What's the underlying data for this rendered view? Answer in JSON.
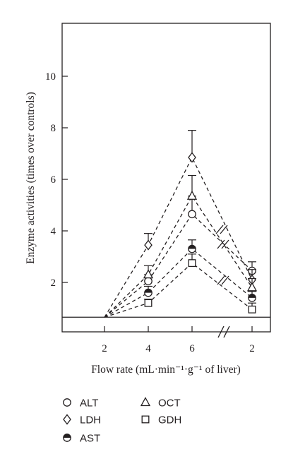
{
  "chart_data": {
    "type": "line",
    "xlabel": "Flow rate (mL·min⁻¹·g⁻¹ of liver)",
    "ylabel": "Enzyme activities (times over controls)",
    "x_categories": [
      "2",
      "4",
      "6",
      "2"
    ],
    "x_axis_break": "between 6 and 2 (//)",
    "yticks": [
      2,
      4,
      6,
      8,
      10
    ],
    "ylim": [
      0.4,
      12
    ],
    "baseline_y": 0.65,
    "grid": false,
    "legend_position": "bottom-left (below plot)",
    "series": [
      {
        "name": "ALT",
        "marker": "open-circle",
        "values": [
          0.65,
          2.05,
          4.65,
          2.45
        ],
        "error": [
          null,
          0.25,
          0.7,
          0.35
        ]
      },
      {
        "name": "LDH",
        "marker": "open-diamond",
        "values": [
          0.65,
          3.45,
          6.85,
          2.1
        ],
        "error": [
          null,
          0.45,
          1.05,
          0.4
        ]
      },
      {
        "name": "AST",
        "marker": "half-filled-circle",
        "values": [
          0.65,
          1.6,
          3.3,
          1.4
        ],
        "error": [
          null,
          0.25,
          0.35,
          0.25
        ]
      },
      {
        "name": "OCT",
        "marker": "open-triangle",
        "values": [
          0.65,
          2.3,
          5.35,
          1.8
        ],
        "error": [
          null,
          0.35,
          0.8,
          0.35
        ]
      },
      {
        "name": "GDH",
        "marker": "open-square",
        "values": [
          0.65,
          1.2,
          2.75,
          0.95
        ],
        "error": [
          null,
          0.15,
          0.35,
          0.25
        ]
      }
    ],
    "colors": {
      "ink": "#231f20"
    }
  }
}
